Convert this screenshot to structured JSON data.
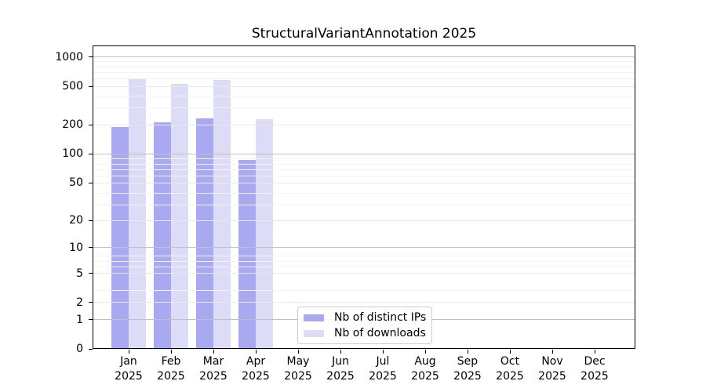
{
  "chart_data": {
    "type": "bar",
    "title": "StructuralVariantAnnotation 2025",
    "categories": [
      "Jan",
      "Feb",
      "Mar",
      "Apr",
      "May",
      "Jun",
      "Jul",
      "Aug",
      "Sep",
      "Oct",
      "Nov",
      "Dec"
    ],
    "category_year": "2025",
    "series": [
      {
        "name": "Nb of distinct IPs",
        "color": "#a9a9f1",
        "values": [
          190,
          215,
          235,
          87,
          0,
          0,
          0,
          0,
          0,
          0,
          0,
          0
        ]
      },
      {
        "name": "Nb of downloads",
        "color": "#dcdcf7",
        "values": [
          600,
          535,
          585,
          230,
          0,
          0,
          0,
          0,
          0,
          0,
          0,
          0
        ]
      }
    ],
    "yscale": "log10(value+1)",
    "yticks": [
      0,
      1,
      2,
      5,
      10,
      20,
      50,
      100,
      200,
      500,
      1000
    ],
    "ylim": [
      0,
      1320
    ],
    "grid": true,
    "legend_position": "lower center"
  },
  "colors": {
    "background": "#ffffff",
    "spine": "#000000",
    "text": "#000000",
    "grid_major": "#c0c0c0",
    "grid_minor": "#e9e9e9",
    "grid_subminor": "#f3f3f3",
    "legend_border": "#cccccc"
  }
}
